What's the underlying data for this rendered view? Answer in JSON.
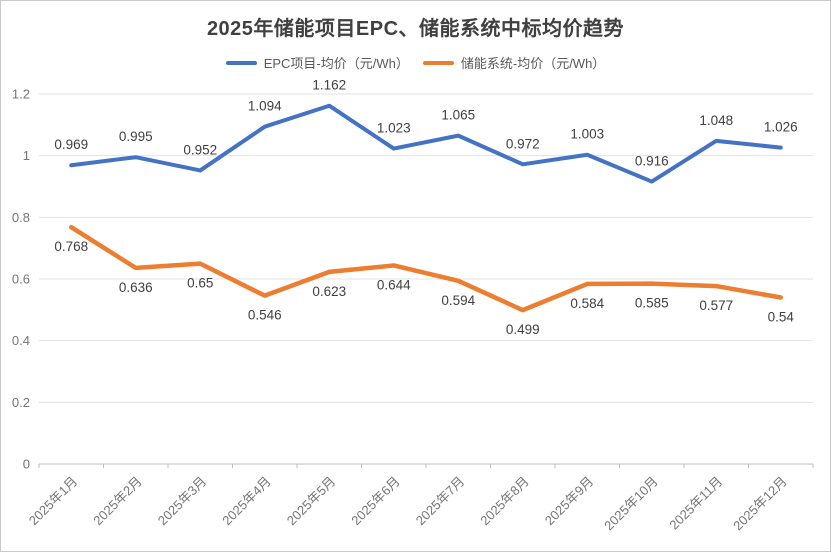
{
  "title": "2025年储能项目EPC、储能系统中标均价趋势",
  "legend": {
    "items": [
      {
        "label": "EPC项目-均价（元/Wh）",
        "color": "#4472C4"
      },
      {
        "label": "储能系统-均价（元/Wh）",
        "color": "#ED7D31"
      }
    ]
  },
  "colors": {
    "epc_series": "#4472C4",
    "system_series": "#ED7D31",
    "title_text": "#404040",
    "data_label_text": "#404040",
    "axis_label_text": "#757575",
    "gridline": "#e3e3e3",
    "axis_line": "#bfbfbf",
    "frame_border": "#c9c9c9"
  },
  "chart_data": {
    "type": "line",
    "title": "2025年储能项目EPC、储能系统中标均价趋势",
    "categories": [
      "2025年1月",
      "2025年2月",
      "2025年3月",
      "2025年4月",
      "2025年5月",
      "2025年6月",
      "2025年7月",
      "2025年8月",
      "2025年9月",
      "2025年10月",
      "2025年11月",
      "2025年12月"
    ],
    "series": [
      {
        "name": "EPC项目-均价（元/Wh）",
        "color": "#4472C4",
        "values": [
          0.969,
          0.995,
          0.952,
          1.094,
          1.162,
          1.023,
          1.065,
          0.972,
          1.003,
          0.916,
          1.048,
          1.026
        ],
        "label_position": "above",
        "stroke_width": 4
      },
      {
        "name": "储能系统-均价（元/Wh）",
        "color": "#ED7D31",
        "values": [
          0.768,
          0.636,
          0.65,
          0.546,
          0.623,
          0.644,
          0.594,
          0.499,
          0.584,
          0.585,
          0.577,
          0.54
        ],
        "label_position": "below",
        "stroke_width": 4.5
      }
    ],
    "xlabel": "",
    "ylabel": "",
    "ylim": [
      0,
      1.2
    ],
    "yticks": [
      0,
      0.2,
      0.4,
      0.6,
      0.8,
      1,
      1.2
    ],
    "grid": true,
    "legend_position": "top",
    "x_label_rotation": -45,
    "data_labels_shown": true
  }
}
